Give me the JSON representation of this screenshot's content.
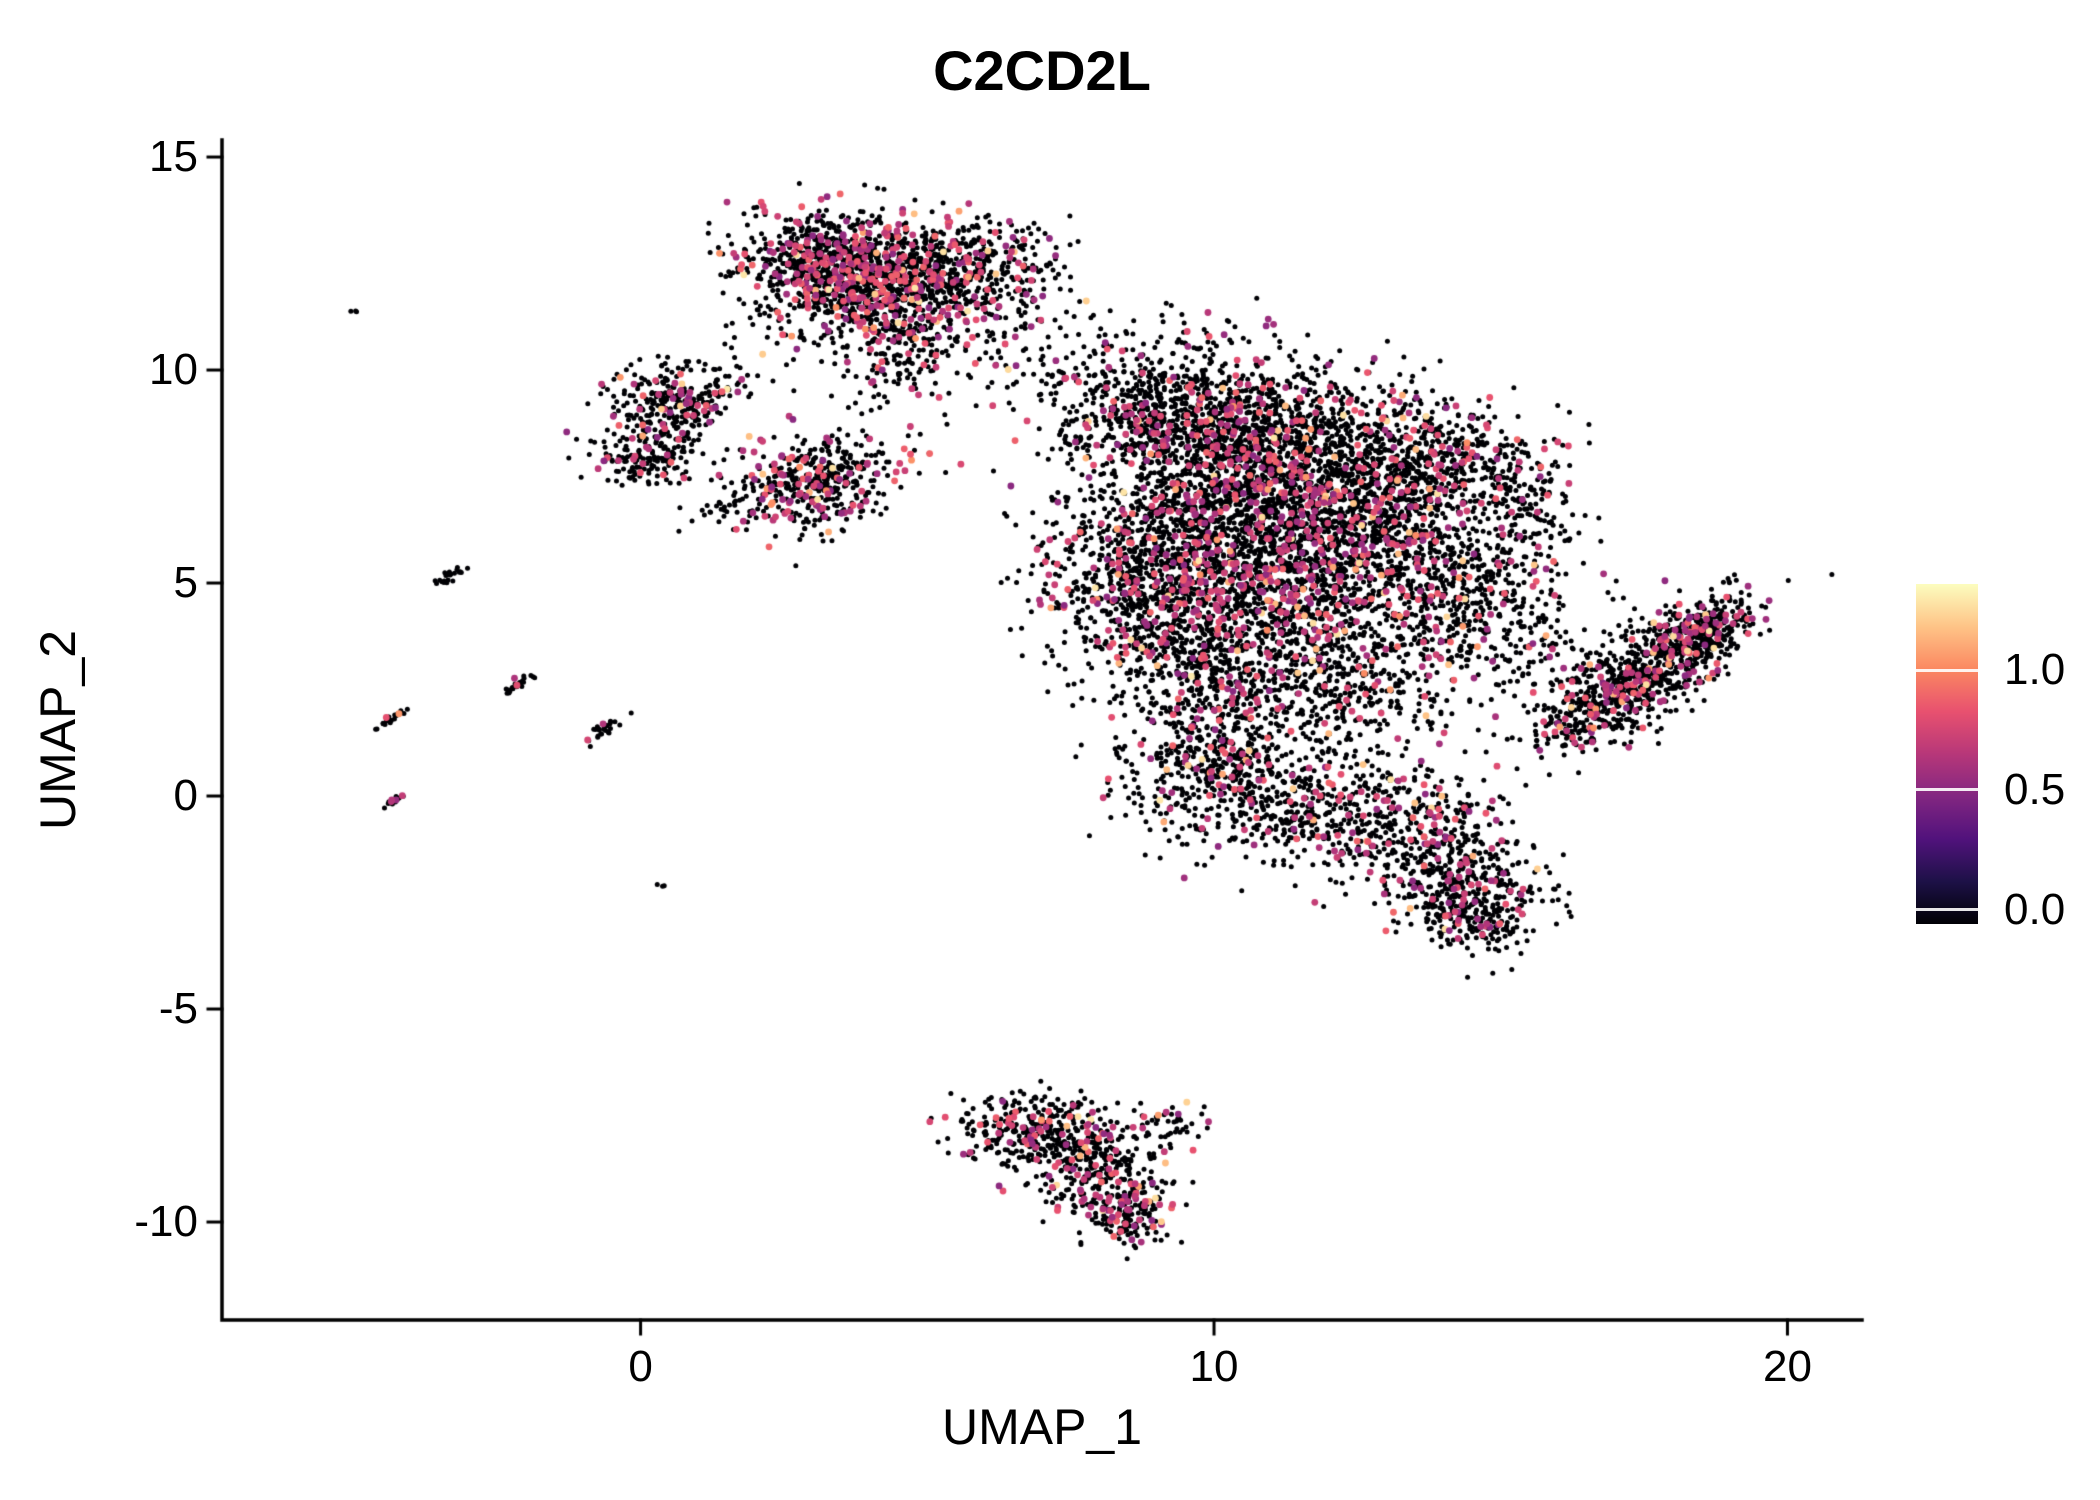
{
  "chart_data": {
    "type": "scatter",
    "title": "C2CD2L",
    "xlabel": "UMAP_1",
    "ylabel": "UMAP_2",
    "xlim": [
      -7.3,
      21.3
    ],
    "ylim": [
      -12.3,
      15.4
    ],
    "grid": false,
    "legend_position": "right",
    "background": "#ffffff",
    "axis_color": "#000000",
    "x_axis": {
      "ticks": [
        {
          "label": "0",
          "value": 0
        },
        {
          "label": "10",
          "value": 10
        },
        {
          "label": "20",
          "value": 20
        }
      ]
    },
    "y_axis": {
      "ticks": [
        {
          "label": "15",
          "value": 15
        },
        {
          "label": "10",
          "value": 10
        },
        {
          "label": "5",
          "value": 5
        },
        {
          "label": "0",
          "value": 0
        },
        {
          "label": "-5",
          "value": -5
        },
        {
          "label": "-10",
          "value": -10
        }
      ]
    },
    "colorbar": {
      "domain": [
        -0.06,
        1.36
      ],
      "ticks": [
        {
          "label": "1.0",
          "value": 1.0
        },
        {
          "label": "0.5",
          "value": 0.5
        },
        {
          "label": "0.0",
          "value": 0.0
        }
      ],
      "stops": [
        "#000004",
        "#1d1147",
        "#51127c",
        "#822681",
        "#b73779",
        "#e8516f",
        "#fb8861",
        "#fec487",
        "#fcfdbf"
      ]
    },
    "point_radius": {
      "zero": 2.5,
      "positive": 3.4
    },
    "expression": {
      "p_high": 0.012,
      "p_mid": 0.11,
      "mid_range": [
        0.5,
        0.9
      ],
      "high_range": [
        1.0,
        1.3
      ]
    },
    "clusters": [
      {
        "x": 3.4,
        "y": 12.5,
        "sx": 0.85,
        "sy": 0.55,
        "a": -10,
        "n": 700,
        "p": 1.8
      },
      {
        "x": 4.9,
        "y": 12.3,
        "sx": 1.0,
        "sy": 0.6,
        "a": -15,
        "n": 600,
        "p": 1.5
      },
      {
        "x": 4.2,
        "y": 11.3,
        "sx": 1.0,
        "sy": 0.5,
        "a": 0,
        "n": 350,
        "p": 1.5
      },
      {
        "x": 4.5,
        "y": 10.1,
        "sx": 0.5,
        "sy": 0.6,
        "a": 0,
        "n": 110,
        "p": 1.4
      },
      {
        "x": 6.2,
        "y": 12.7,
        "sx": 0.6,
        "sy": 0.4,
        "a": 0,
        "n": 150,
        "p": 1.2
      },
      {
        "x": 6.8,
        "y": 10.3,
        "sx": 0.8,
        "sy": 0.6,
        "a": 20,
        "n": 90,
        "p": 1.0
      },
      {
        "x": 1.6,
        "y": 9.8,
        "sx": 0.5,
        "sy": 0.3,
        "a": 0,
        "n": 40,
        "p": 1.0
      },
      {
        "x": 0.5,
        "y": 9.2,
        "sx": 0.55,
        "sy": 0.45,
        "a": 0,
        "n": 260,
        "p": 1.2
      },
      {
        "x": 0.2,
        "y": 8.0,
        "sx": 0.45,
        "sy": 0.35,
        "a": 0,
        "n": 160,
        "p": 1.2
      },
      {
        "x": 1.6,
        "y": 6.9,
        "sx": 0.4,
        "sy": 0.3,
        "a": 0,
        "n": 35,
        "p": 1.0
      },
      {
        "x": 3.1,
        "y": 7.4,
        "sx": 0.75,
        "sy": 0.55,
        "a": 15,
        "n": 430,
        "p": 1.7
      },
      {
        "x": 9.4,
        "y": 9.0,
        "sx": 1.1,
        "sy": 0.9,
        "a": 0,
        "n": 900,
        "p": 1.1
      },
      {
        "x": 11.5,
        "y": 8.2,
        "sx": 1.2,
        "sy": 0.9,
        "a": 0,
        "n": 900,
        "p": 1.3
      },
      {
        "x": 10.3,
        "y": 6.5,
        "sx": 1.3,
        "sy": 1.0,
        "a": 0,
        "n": 900,
        "p": 1.2
      },
      {
        "x": 8.8,
        "y": 5.0,
        "sx": 0.9,
        "sy": 1.1,
        "a": 0,
        "n": 700,
        "p": 1.3
      },
      {
        "x": 11.0,
        "y": 4.6,
        "sx": 1.2,
        "sy": 1.0,
        "a": 0,
        "n": 800,
        "p": 1.3
      },
      {
        "x": 12.8,
        "y": 6.3,
        "sx": 1.1,
        "sy": 1.0,
        "a": 0,
        "n": 700,
        "p": 1.4
      },
      {
        "x": 13.9,
        "y": 7.9,
        "sx": 0.9,
        "sy": 0.7,
        "a": 0,
        "n": 400,
        "p": 1.1
      },
      {
        "x": 14.3,
        "y": 4.6,
        "sx": 1.0,
        "sy": 1.0,
        "a": 0,
        "n": 500,
        "p": 1.0
      },
      {
        "x": 15.4,
        "y": 6.8,
        "sx": 0.5,
        "sy": 0.7,
        "a": 0,
        "n": 150,
        "p": 0.9
      },
      {
        "x": 9.9,
        "y": 2.8,
        "sx": 0.8,
        "sy": 0.8,
        "a": 0,
        "n": 350,
        "p": 1.1
      },
      {
        "x": 12.2,
        "y": 2.6,
        "sx": 1.0,
        "sy": 0.9,
        "a": 0,
        "n": 400,
        "p": 1.0
      },
      {
        "x": 10.1,
        "y": 0.6,
        "sx": 0.9,
        "sy": 0.8,
        "a": 0,
        "n": 450,
        "p": 1.2
      },
      {
        "x": 12.0,
        "y": -0.3,
        "sx": 1.0,
        "sy": 0.7,
        "a": 0,
        "n": 350,
        "p": 1.1
      },
      {
        "x": 13.6,
        "y": -1.0,
        "sx": 0.8,
        "sy": 0.7,
        "a": 0,
        "n": 300,
        "p": 1.2
      },
      {
        "x": 14.5,
        "y": -2.2,
        "sx": 0.7,
        "sy": 0.6,
        "a": 0,
        "n": 250,
        "p": 1.0
      },
      {
        "x": 14.7,
        "y": -2.9,
        "sx": 0.55,
        "sy": 0.45,
        "a": 0,
        "n": 150,
        "p": 1.0
      },
      {
        "x": 15.9,
        "y": 3.2,
        "sx": 0.5,
        "sy": 0.7,
        "a": 0,
        "n": 70,
        "p": 0.8
      },
      {
        "x": 17.4,
        "y": 2.8,
        "sx": 1.15,
        "sy": 0.42,
        "a": 42,
        "n": 850,
        "p": 1.1
      },
      {
        "x": 18.6,
        "y": 3.9,
        "sx": 0.45,
        "sy": 0.3,
        "a": 42,
        "n": 200,
        "p": 1.2
      },
      {
        "x": 6.9,
        "y": -7.9,
        "sx": 0.65,
        "sy": 0.45,
        "a": -10,
        "n": 330,
        "p": 1.4
      },
      {
        "x": 8.0,
        "y": -8.8,
        "sx": 0.55,
        "sy": 0.55,
        "a": -30,
        "n": 280,
        "p": 1.4
      },
      {
        "x": 8.5,
        "y": -9.8,
        "sx": 0.35,
        "sy": 0.4,
        "a": 0,
        "n": 130,
        "p": 1.6
      },
      {
        "x": 9.1,
        "y": -7.7,
        "sx": 0.35,
        "sy": 0.25,
        "a": 0,
        "n": 50,
        "p": 1.0
      },
      {
        "x": -3.3,
        "y": 5.2,
        "sx": 0.18,
        "sy": 0.05,
        "a": 40,
        "n": 25,
        "p": 1.0
      },
      {
        "x": -2.15,
        "y": 2.6,
        "sx": 0.16,
        "sy": 0.05,
        "a": 40,
        "n": 22,
        "p": 1.2
      },
      {
        "x": -4.4,
        "y": 1.8,
        "sx": 0.2,
        "sy": 0.05,
        "a": 40,
        "n": 25,
        "p": 1.5
      },
      {
        "x": -0.65,
        "y": 1.55,
        "sx": 0.22,
        "sy": 0.06,
        "a": 40,
        "n": 28,
        "p": 1.0
      },
      {
        "x": -4.3,
        "y": -0.1,
        "sx": 0.12,
        "sy": 0.05,
        "a": 40,
        "n": 14,
        "p": 1.0
      },
      {
        "x": 0.35,
        "y": -2.1,
        "sx": 0.05,
        "sy": 0.04,
        "a": 0,
        "n": 3,
        "p": 0
      },
      {
        "x": -5.0,
        "y": 11.4,
        "sx": 0.06,
        "sy": 0.05,
        "a": 40,
        "n": 3,
        "p": 0
      }
    ]
  }
}
